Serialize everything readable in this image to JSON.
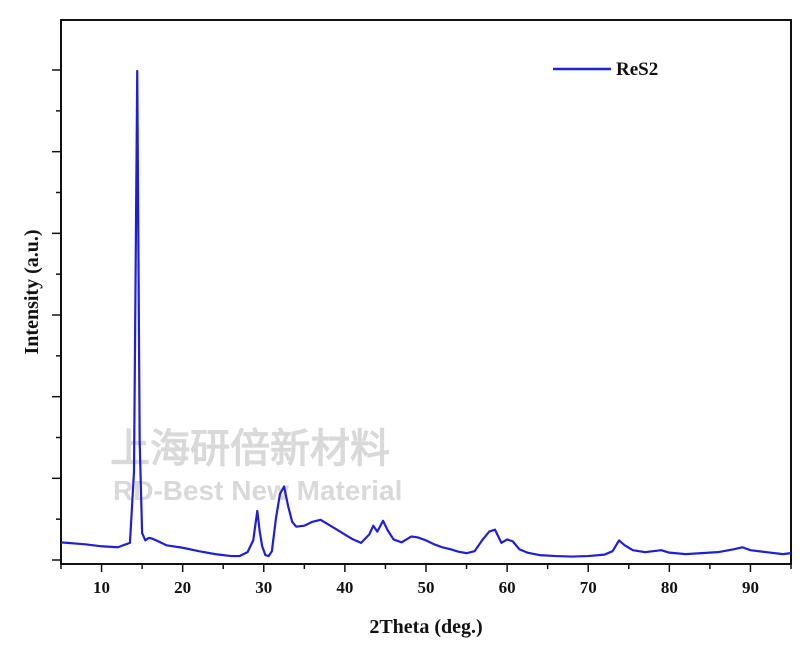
{
  "chart_data": {
    "type": "line",
    "title": "",
    "xlabel": "2Theta (deg.)",
    "ylabel": "Intensity (a.u.)",
    "xlim": [
      5,
      95
    ],
    "ylim": [
      0,
      1000
    ],
    "x_ticks": [
      10,
      20,
      30,
      40,
      50,
      60,
      70,
      80,
      90
    ],
    "y_tick_labels_shown": false,
    "grid": false,
    "legend_position": "top-right",
    "line_color": "#1f1fd6",
    "series": [
      {
        "name": "ReS2",
        "x": [
          5,
          8,
          10,
          12,
          13.5,
          14.0,
          14.4,
          14.7,
          15.0,
          15.4,
          15.8,
          16.2,
          17,
          18,
          20,
          22,
          24,
          26,
          27,
          28,
          28.7,
          29.2,
          29.5,
          29.8,
          30.2,
          30.6,
          31.0,
          31.5,
          32.0,
          32.5,
          33.0,
          33.5,
          34.0,
          35.0,
          36.0,
          37.0,
          38.0,
          39.0,
          40.0,
          41.0,
          42.0,
          43.0,
          43.5,
          44.0,
          44.7,
          45.3,
          46.0,
          47.0,
          48.2,
          49.0,
          50.0,
          51.0,
          52.0,
          53.0,
          54.0,
          55.0,
          56.0,
          57.0,
          57.8,
          58.5,
          59.3,
          60.0,
          60.7,
          61.5,
          62.5,
          64,
          66,
          68,
          70,
          72,
          73.0,
          73.8,
          74.5,
          75.5,
          77,
          79,
          80,
          82,
          84,
          86,
          88,
          89,
          90,
          92,
          94,
          95
        ],
        "values": [
          36,
          32,
          28,
          26,
          35,
          180,
          998,
          240,
          55,
          40,
          45,
          44,
          38,
          30,
          25,
          18,
          12,
          8,
          8,
          16,
          40,
          100,
          58,
          28,
          10,
          8,
          18,
          85,
          135,
          150,
          110,
          78,
          68,
          70,
          78,
          82,
          72,
          62,
          52,
          42,
          35,
          52,
          70,
          58,
          80,
          60,
          42,
          36,
          48,
          46,
          40,
          32,
          26,
          22,
          17,
          14,
          18,
          42,
          58,
          62,
          35,
          42,
          38,
          22,
          15,
          10,
          8,
          7,
          8,
          11,
          18,
          40,
          30,
          20,
          16,
          20,
          15,
          12,
          14,
          16,
          22,
          26,
          20,
          16,
          12,
          14
        ]
      }
    ]
  },
  "watermark": {
    "line1": "上海研倍新材料",
    "line2": "RD-Best New Material"
  }
}
